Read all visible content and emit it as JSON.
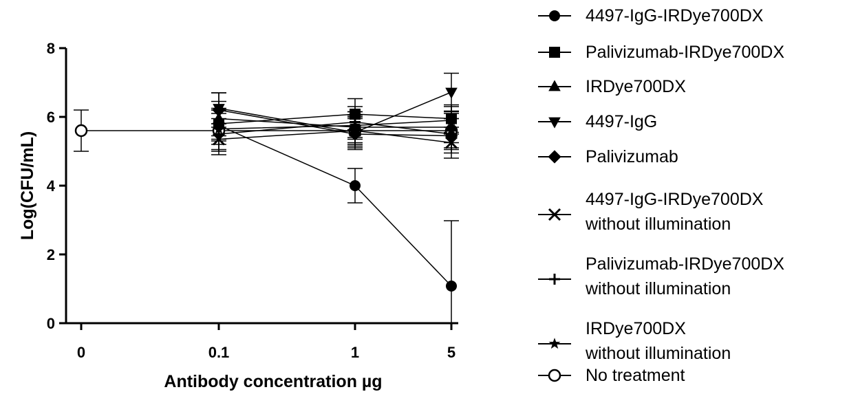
{
  "chart_data": {
    "type": "line",
    "xlabel": "Antibody concentration µg",
    "ylabel": "Log(CFU/mL)",
    "categories": [
      "0",
      "0.1",
      "1",
      "5"
    ],
    "yticks": [
      "0",
      "2",
      "4",
      "6",
      "8"
    ],
    "ylim": [
      0,
      8
    ],
    "grid": false,
    "legend_position": "right",
    "series": [
      {
        "name": [
          "4497-IgG-IRDye700DX"
        ],
        "marker": "circle",
        "x": [
          "0.1",
          "1",
          "5"
        ],
        "values": [
          5.75,
          4.0,
          1.08
        ],
        "err": [
          0.45,
          0.5,
          1.9
        ]
      },
      {
        "name": [
          "Palivizumab-IRDye700DX"
        ],
        "marker": "square",
        "x": [
          "0.1",
          "1",
          "5"
        ],
        "values": [
          5.8,
          6.08,
          5.95
        ],
        "err": [
          0.45,
          0.45,
          0.4
        ]
      },
      {
        "name": [
          "IRDye700DX"
        ],
        "marker": "triangle-up",
        "x": [
          "0.1",
          "1",
          "5"
        ],
        "values": [
          5.95,
          5.7,
          5.7
        ],
        "err": [
          0.5,
          0.45,
          0.45
        ]
      },
      {
        "name": [
          "4497-IgG"
        ],
        "marker": "triangle-down",
        "x": [
          "0.1",
          "1",
          "5"
        ],
        "values": [
          6.25,
          5.55,
          6.72
        ],
        "err": [
          0.45,
          0.45,
          0.55
        ]
      },
      {
        "name": [
          "Palivizumab"
        ],
        "marker": "diamond",
        "x": [
          "0.1",
          "1",
          "5"
        ],
        "values": [
          6.2,
          5.5,
          5.45
        ],
        "err": [
          0.5,
          0.45,
          0.5
        ]
      },
      {
        "name": [
          "4497-IgG-IRDye700DX",
          "without illumination"
        ],
        "marker": "x",
        "x": [
          "0.1",
          "1",
          "5"
        ],
        "values": [
          5.35,
          5.6,
          5.25
        ],
        "err": [
          0.45,
          0.4,
          0.45
        ]
      },
      {
        "name": [
          "Palivizumab-IRDye700DX",
          "without illumination"
        ],
        "marker": "plus",
        "x": [
          "0.1",
          "1",
          "5"
        ],
        "values": [
          5.5,
          5.85,
          5.5
        ],
        "err": [
          0.45,
          0.45,
          0.45
        ]
      },
      {
        "name": [
          "IRDye700DX",
          "without illumination"
        ],
        "marker": "star",
        "x": [
          "0.1",
          "1",
          "5"
        ],
        "values": [
          5.65,
          5.75,
          5.9
        ],
        "err": [
          0.45,
          0.4,
          0.4
        ]
      },
      {
        "name": [
          "No treatment"
        ],
        "marker": "open-circle",
        "x": [
          "0",
          "0.1",
          "1",
          "5"
        ],
        "values": [
          5.6,
          5.6,
          5.6,
          5.6
        ],
        "err": [
          0.6,
          0.6,
          0.45,
          0.5
        ]
      }
    ]
  }
}
